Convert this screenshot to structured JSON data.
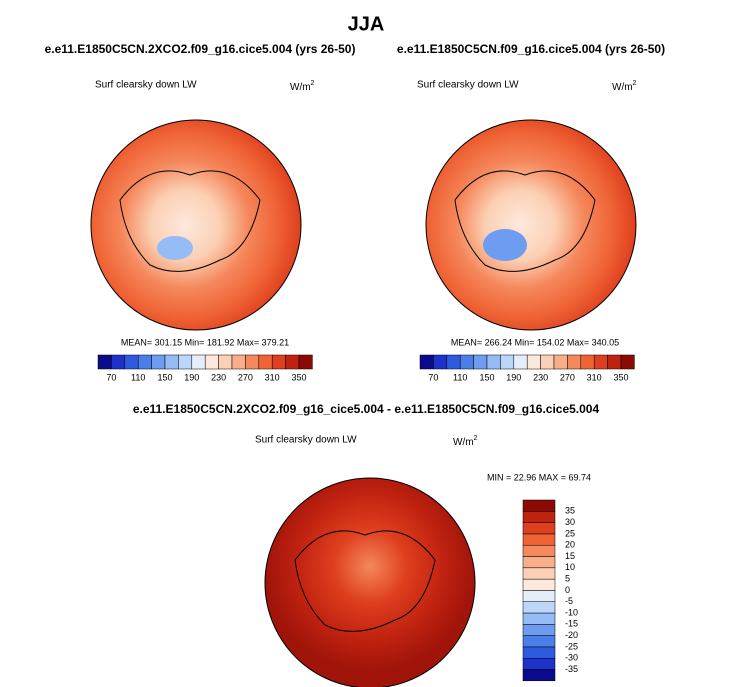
{
  "title": "JJA",
  "panels": [
    {
      "title": "e.e11.E1850C5CN.2XCO2.f09_g16.cice5.004 (yrs 26-50)",
      "variable": "Surf clearsky down LW",
      "units": "W/m",
      "units_sup": "2",
      "stats": "MEAN= 301.15  Min= 181.92  Max= 379.21"
    },
    {
      "title": "e.e11.E1850C5CN.f09_g16.cice5.004 (yrs 26-50)",
      "variable": "Surf clearsky down LW",
      "units": "W/m",
      "units_sup": "2",
      "stats": "MEAN= 266.24  Min= 154.02  Max= 340.05"
    },
    {
      "title": "e.e11.E1850C5CN.2XCO2.f09_g16_cice5.004 - e.e11.E1850C5CN.f09_g16.cice5.004",
      "variable": "Surf clearsky down LW",
      "units": "W/m",
      "units_sup": "2",
      "stats": "MIN =  22.96 MAX =  69.74"
    }
  ],
  "colorbar": {
    "colors": [
      "#0a0a8c",
      "#1c32c8",
      "#2e5ae0",
      "#4a7ee8",
      "#6e9cf0",
      "#96bcf5",
      "#bcd6fa",
      "#e4eefb",
      "#fde9dc",
      "#fbd0b4",
      "#f8ae88",
      "#f5885c",
      "#ef6335",
      "#de3f1e",
      "#c02210",
      "#8c0a04"
    ],
    "labels": [
      70,
      110,
      150,
      190,
      230,
      270,
      310,
      350
    ],
    "diff_labels": [
      -35,
      -30,
      -25,
      -20,
      -15,
      -10,
      -5,
      0,
      5,
      10,
      15,
      20,
      25,
      30,
      35
    ]
  }
}
